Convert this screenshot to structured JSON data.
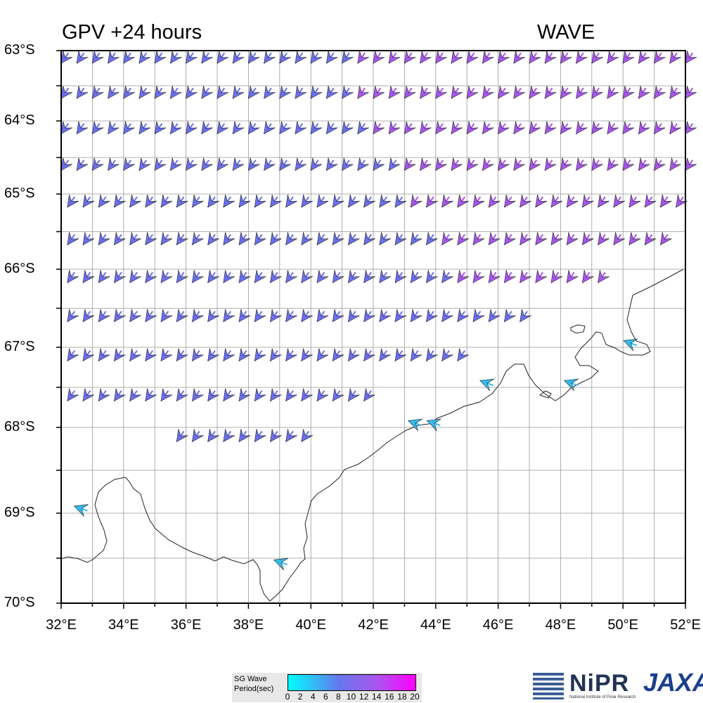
{
  "header": {
    "title_left": "GPV +24 hours",
    "title_right": "WAVE"
  },
  "axes": {
    "lat_labels": [
      "63°S",
      "64°S",
      "65°S",
      "66°S",
      "67°S",
      "68°S",
      "69°S",
      "70°S"
    ],
    "lon_labels": [
      "32°E",
      "34°E",
      "36°E",
      "38°E",
      "40°E",
      "42°E",
      "44°E",
      "46°E",
      "48°E",
      "50°E",
      "52°E"
    ],
    "lat_range": [
      -70,
      -63
    ],
    "lon_range": [
      32,
      52
    ]
  },
  "colorbar": {
    "label_line1": "SG Wave",
    "label_line2": "Period(sec)",
    "ticks": [
      "0",
      "2",
      "4",
      "6",
      "8",
      "10",
      "12",
      "14",
      "16",
      "18",
      "20"
    ],
    "colors": [
      "#00ffff",
      "#6677ee",
      "#aa55ee",
      "#ff00ff"
    ]
  },
  "logos": {
    "nipr": "NiPR",
    "nipr_sub": "National Institute of Polar Research",
    "jaxa": "JAXA"
  },
  "arrow_rows": [
    {
      "lat": -63.1,
      "lon_start": 32.0,
      "lon_end": 52.0,
      "purple_from": 41.2
    },
    {
      "lat": -63.6,
      "lon_start": 32.0,
      "lon_end": 52.0,
      "purple_from": 41.2
    },
    {
      "lat": -64.1,
      "lon_start": 32.0,
      "lon_end": 52.0,
      "purple_from": 41.7
    },
    {
      "lat": -64.6,
      "lon_start": 32.0,
      "lon_end": 52.0,
      "purple_from": 42.7
    },
    {
      "lat": -65.1,
      "lon_start": 32.2,
      "lon_end": 52.0,
      "purple_from": 43.2
    },
    {
      "lat": -65.6,
      "lon_start": 32.2,
      "lon_end": 51.2,
      "purple_from": 44.2
    },
    {
      "lat": -66.1,
      "lon_start": 32.2,
      "lon_end": 49.2,
      "purple_from": 44.7
    },
    {
      "lat": -66.6,
      "lon_start": 32.2,
      "lon_end": 46.7,
      "purple_from": 99
    },
    {
      "lat": -67.1,
      "lon_start": 32.2,
      "lon_end": 44.7,
      "purple_from": 99
    },
    {
      "lat": -67.6,
      "lon_start": 32.2,
      "lon_end": 41.7,
      "purple_from": 99
    },
    {
      "lat": -68.1,
      "lon_start": 35.7,
      "lon_end": 39.7,
      "purple_from": 99
    }
  ],
  "coastal_arrows": [
    {
      "lon": 32.6,
      "lat": -68.95
    },
    {
      "lon": 39.0,
      "lat": -69.55
    },
    {
      "lon": 43.3,
      "lat": -67.95
    },
    {
      "lon": 43.9,
      "lat": -67.95
    },
    {
      "lon": 45.6,
      "lat": -67.45
    },
    {
      "lon": 48.3,
      "lat": -67.45
    },
    {
      "lon": 50.2,
      "lat": -66.95
    }
  ]
}
